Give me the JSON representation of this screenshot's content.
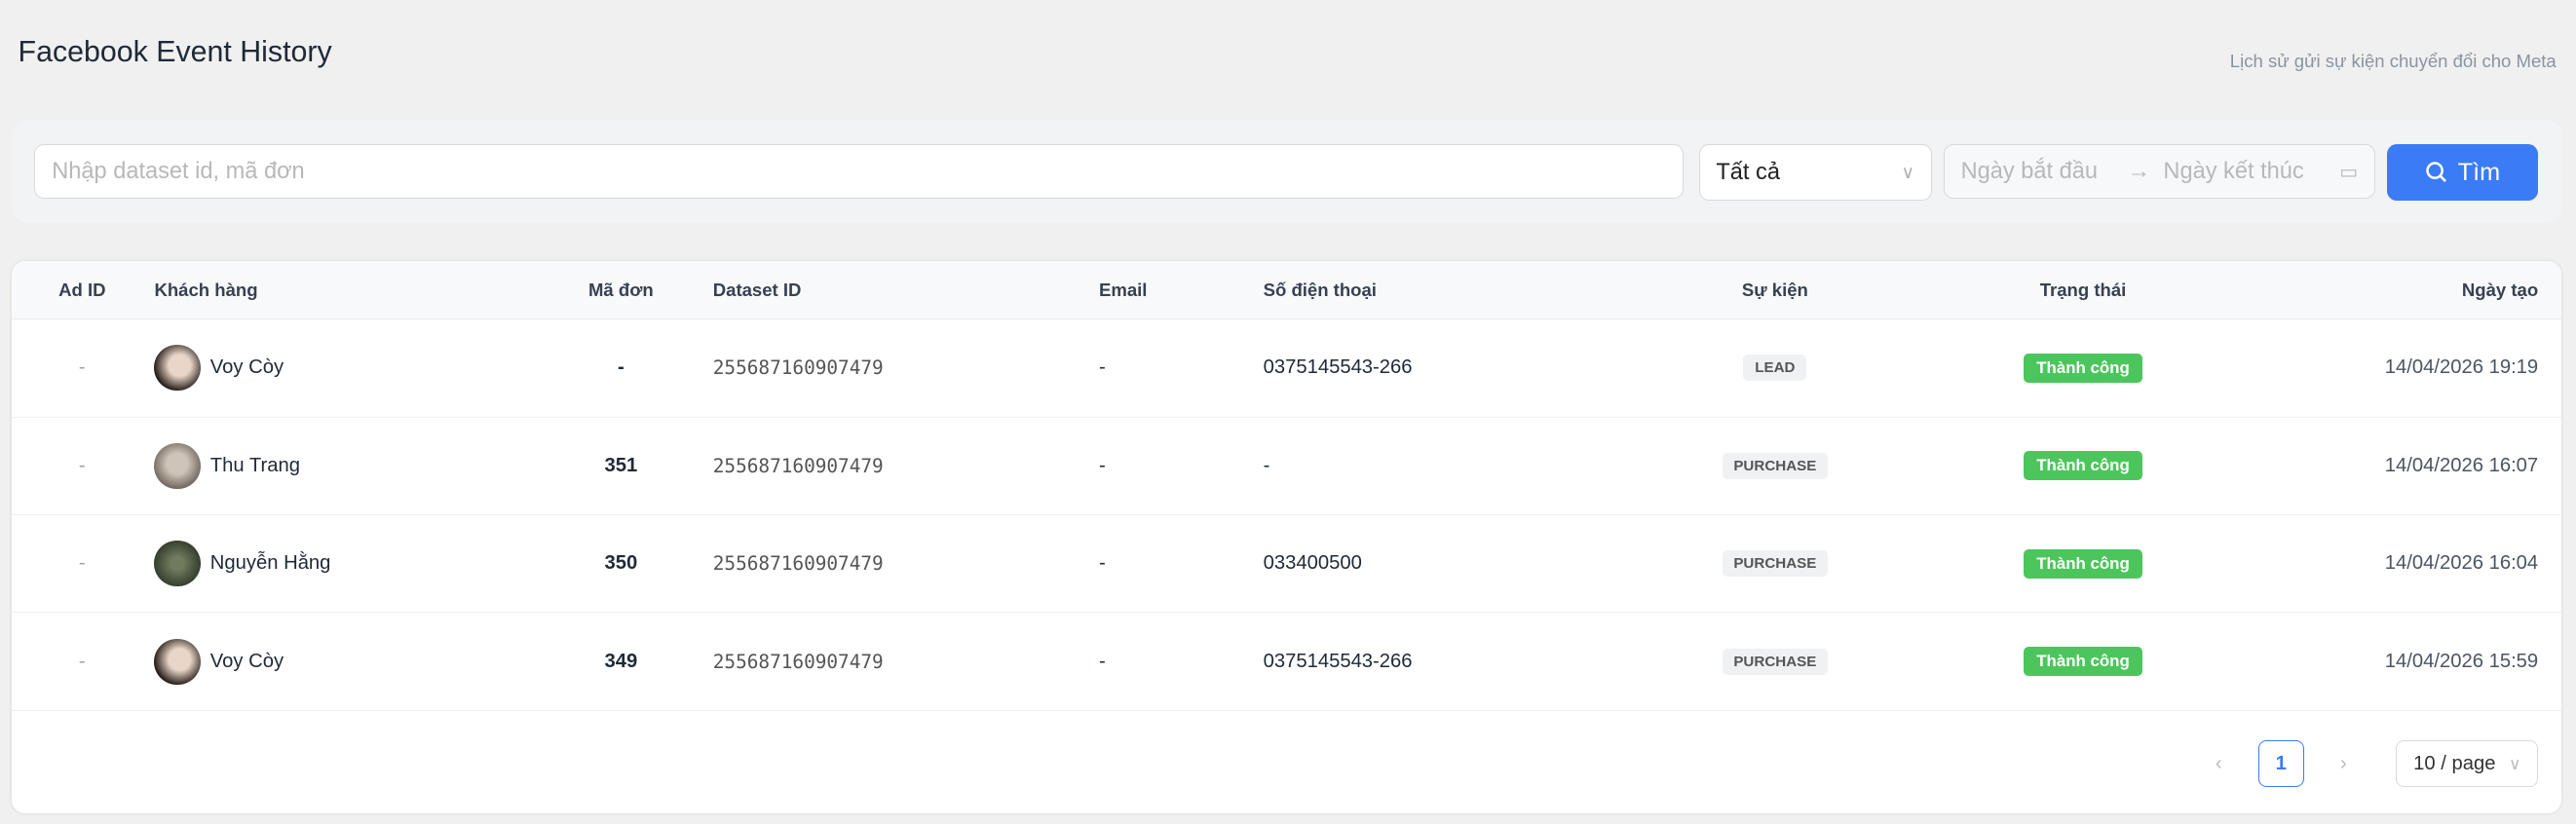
{
  "header": {
    "title": "Facebook Event History",
    "subtitle": "Lịch sử gửi sự kiện chuyển đổi cho Meta"
  },
  "filters": {
    "search_placeholder": "Nhập dataset id, mã đơn",
    "status_select": "Tất cả",
    "start_placeholder": "Ngày bắt đầu",
    "end_placeholder": "Ngày kết thúc",
    "arrow": "→",
    "search_button": "Tìm"
  },
  "table": {
    "columns": [
      "Ad ID",
      "Khách hàng",
      "Mã đơn",
      "Dataset ID",
      "Email",
      "Số điện thoại",
      "Sự kiện",
      "Trạng thái",
      "Ngày tạo"
    ],
    "rows": [
      {
        "ad_id": "-",
        "customer": "Voy Còy",
        "order": "-",
        "dataset": "255687160907479",
        "email": "-",
        "phone": "0375145543-266",
        "event": "LEAD",
        "status": "Thành công",
        "created": "14/04/2026 19:19"
      },
      {
        "ad_id": "-",
        "customer": "Thu Trang",
        "order": "351",
        "dataset": "255687160907479",
        "email": "-",
        "phone": "-",
        "event": "PURCHASE",
        "status": "Thành công",
        "created": "14/04/2026 16:07"
      },
      {
        "ad_id": "-",
        "customer": "Nguyễn Hằng",
        "order": "350",
        "dataset": "255687160907479",
        "email": "-",
        "phone": "033400500",
        "event": "PURCHASE",
        "status": "Thành công",
        "created": "14/04/2026 16:04"
      },
      {
        "ad_id": "-",
        "customer": "Voy Còy",
        "order": "349",
        "dataset": "255687160907479",
        "email": "-",
        "phone": "0375145543-266",
        "event": "PURCHASE",
        "status": "Thành công",
        "created": "14/04/2026 15:59"
      }
    ]
  },
  "pagination": {
    "prev": "‹",
    "current": "1",
    "next": "›",
    "page_size": "10 / page"
  },
  "colors": {
    "primary": "#3b7bf6",
    "success": "#4cc65c"
  }
}
